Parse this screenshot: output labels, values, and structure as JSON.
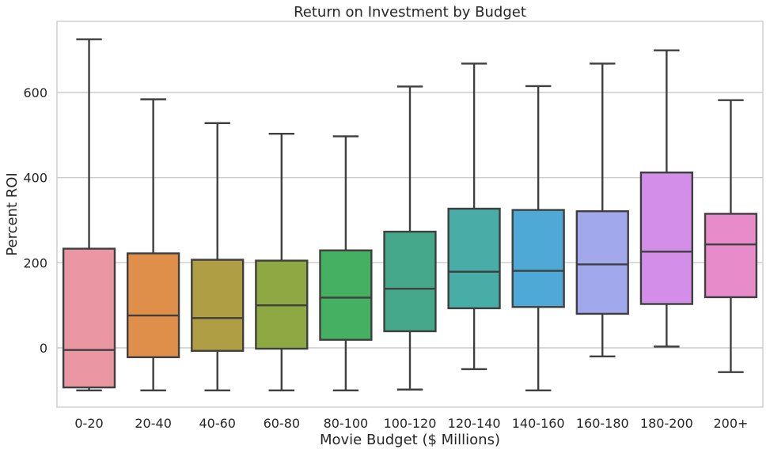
{
  "chart_data": {
    "type": "box",
    "title": "Return on Investment by Budget",
    "xlabel": "Movie Budget ($ Millions)",
    "ylabel": "Percent ROI",
    "ylim": [
      -140,
      760
    ],
    "yticks": [
      0,
      200,
      400,
      600
    ],
    "grid": true,
    "categories": [
      "0-20",
      "20-40",
      "40-60",
      "60-80",
      "80-100",
      "100-120",
      "120-140",
      "140-160",
      "160-180",
      "180-200",
      "200+"
    ],
    "colors": [
      "#ea96a3",
      "#e08f4a",
      "#b09e45",
      "#8ea843",
      "#45b062",
      "#45a88b",
      "#48ada7",
      "#4fa9d6",
      "#a2a8ec",
      "#d38ee9",
      "#e88bca"
    ],
    "boxes": [
      {
        "whisker_low": -100,
        "q1": -93,
        "median": -5,
        "q3": 233,
        "whisker_high": 725
      },
      {
        "whisker_low": -100,
        "q1": -22,
        "median": 76,
        "q3": 222,
        "whisker_high": 584
      },
      {
        "whisker_low": -100,
        "q1": -7,
        "median": 70,
        "q3": 207,
        "whisker_high": 528
      },
      {
        "whisker_low": -100,
        "q1": -2,
        "median": 100,
        "q3": 205,
        "whisker_high": 503
      },
      {
        "whisker_low": -100,
        "q1": 19,
        "median": 118,
        "q3": 229,
        "whisker_high": 497
      },
      {
        "whisker_low": -98,
        "q1": 39,
        "median": 139,
        "q3": 273,
        "whisker_high": 614
      },
      {
        "whisker_low": -50,
        "q1": 93,
        "median": 179,
        "q3": 327,
        "whisker_high": 668
      },
      {
        "whisker_low": -100,
        "q1": 96,
        "median": 181,
        "q3": 324,
        "whisker_high": 615
      },
      {
        "whisker_low": -20,
        "q1": 80,
        "median": 196,
        "q3": 321,
        "whisker_high": 668
      },
      {
        "whisker_low": 3,
        "q1": 103,
        "median": 226,
        "q3": 412,
        "whisker_high": 699
      },
      {
        "whisker_low": -57,
        "q1": 119,
        "median": 243,
        "q3": 315,
        "whisker_high": 582
      }
    ]
  }
}
